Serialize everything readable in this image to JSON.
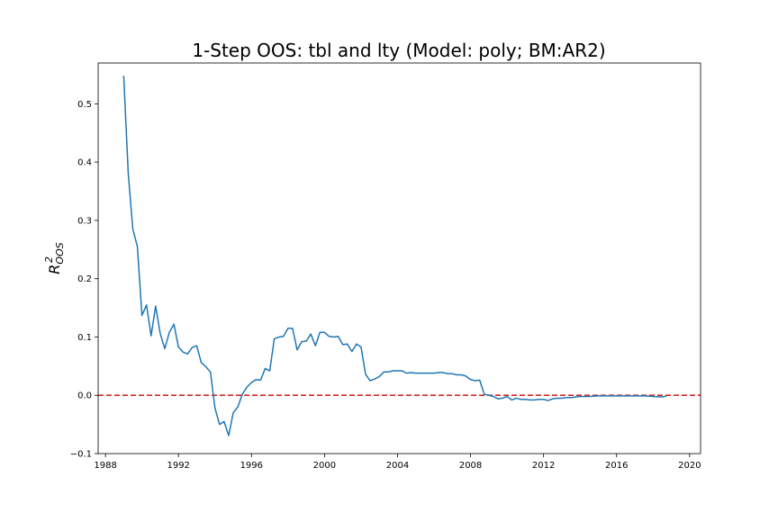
{
  "chart_data": {
    "type": "line",
    "title": "1-Step OOS: tbl and lty (Model: poly; BM:AR2)",
    "ylabel_main": "R",
    "ylabel_sup": "2",
    "ylabel_sub": "OOS",
    "xlabel": "",
    "xlim": [
      1987.6,
      2020.6
    ],
    "ylim": [
      -0.1,
      0.57
    ],
    "xticks": [
      1988,
      1992,
      1996,
      2000,
      2004,
      2008,
      2012,
      2016,
      2020
    ],
    "xtick_labels": [
      "1988",
      "1992",
      "1996",
      "2000",
      "2004",
      "2008",
      "2012",
      "2016",
      "2020"
    ],
    "yticks": [
      -0.1,
      0.0,
      0.1,
      0.2,
      0.3,
      0.4,
      0.5
    ],
    "ytick_labels": [
      "−0.1",
      "0.0",
      "0.1",
      "0.2",
      "0.3",
      "0.4",
      "0.5"
    ],
    "grid": false,
    "line_color": "#1f77b4",
    "reference_line": {
      "y": 0.0,
      "color": "#d62728",
      "style": "dashed"
    },
    "series": [
      {
        "x": [
          1989.0,
          1989.25,
          1989.5,
          1989.75,
          1990.0,
          1990.25,
          1990.5,
          1990.75,
          1991.0,
          1991.25,
          1991.5,
          1991.75,
          1992.0,
          1992.25,
          1992.5,
          1992.75,
          1993.0,
          1993.25,
          1993.5,
          1993.75,
          1994.0,
          1994.25,
          1994.5,
          1994.75,
          1995.0,
          1995.25,
          1995.5,
          1995.75,
          1996.0,
          1996.25,
          1996.5,
          1996.75,
          1997.0,
          1997.25,
          1997.5,
          1997.75,
          1998.0,
          1998.25,
          1998.5,
          1998.75,
          1999.0,
          1999.25,
          1999.5,
          1999.75,
          2000.0,
          2000.25,
          2000.5,
          2000.75,
          2001.0,
          2001.25,
          2001.5,
          2001.75,
          2002.0,
          2002.25,
          2002.5,
          2002.75,
          2003.0,
          2003.25,
          2003.5,
          2003.75,
          2004.0,
          2004.25,
          2004.5,
          2004.75,
          2005.0,
          2005.25,
          2005.5,
          2005.75,
          2006.0,
          2006.25,
          2006.5,
          2006.75,
          2007.0,
          2007.25,
          2007.5,
          2007.75,
          2008.0,
          2008.25,
          2008.5,
          2008.75,
          2009.0,
          2009.25,
          2009.5,
          2009.75,
          2010.0,
          2010.25,
          2010.5,
          2010.75,
          2011.0,
          2011.25,
          2011.5,
          2011.75,
          2012.0,
          2012.25,
          2012.5,
          2012.75,
          2013.0,
          2013.25,
          2013.5,
          2013.75,
          2014.0,
          2014.5,
          2015.0,
          2015.5,
          2016.0,
          2016.5,
          2017.0,
          2017.5,
          2018.0,
          2018.5,
          2018.75
        ],
        "values": [
          0.548,
          0.38,
          0.285,
          0.255,
          0.137,
          0.155,
          0.102,
          0.153,
          0.106,
          0.08,
          0.108,
          0.122,
          0.083,
          0.074,
          0.071,
          0.082,
          0.085,
          0.056,
          0.049,
          0.04,
          -0.022,
          -0.05,
          -0.045,
          -0.069,
          -0.03,
          -0.02,
          0.002,
          0.014,
          0.022,
          0.027,
          0.026,
          0.046,
          0.042,
          0.097,
          0.1,
          0.101,
          0.115,
          0.115,
          0.078,
          0.092,
          0.093,
          0.105,
          0.085,
          0.108,
          0.108,
          0.101,
          0.1,
          0.101,
          0.087,
          0.088,
          0.075,
          0.088,
          0.083,
          0.036,
          0.025,
          0.028,
          0.032,
          0.04,
          0.04,
          0.042,
          0.042,
          0.042,
          0.038,
          0.039,
          0.038,
          0.038,
          0.038,
          0.038,
          0.038,
          0.039,
          0.039,
          0.037,
          0.037,
          0.035,
          0.035,
          0.033,
          0.027,
          0.025,
          0.026,
          0.002,
          0.0,
          -0.002,
          -0.006,
          -0.005,
          -0.002,
          -0.008,
          -0.005,
          -0.007,
          -0.007,
          -0.008,
          -0.008,
          -0.007,
          -0.007,
          -0.009,
          -0.006,
          -0.005,
          -0.005,
          -0.004,
          -0.004,
          -0.003,
          -0.002,
          -0.002,
          -0.001,
          -0.001,
          -0.001,
          -0.001,
          -0.001,
          -0.001,
          -0.002,
          -0.003,
          -0.001
        ]
      }
    ]
  }
}
